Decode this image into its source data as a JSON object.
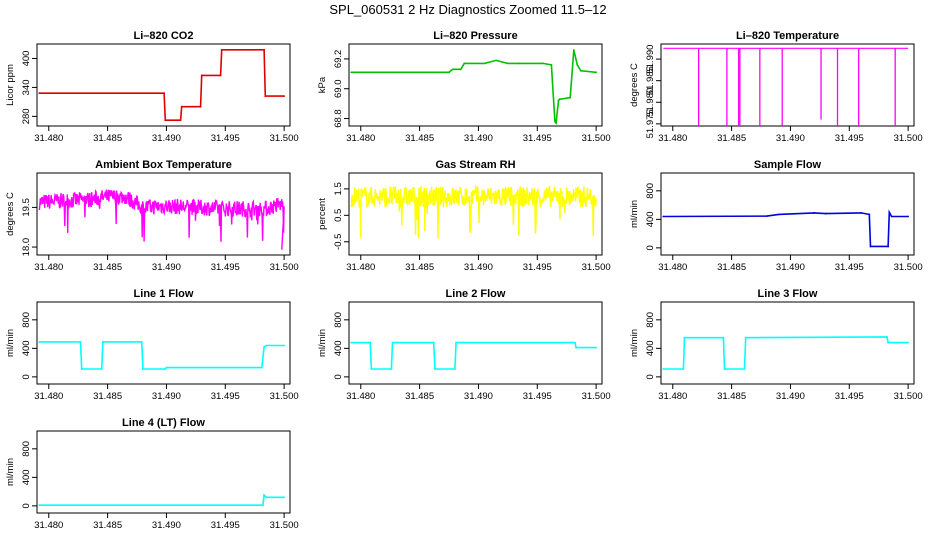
{
  "figure_title": "SPL_060531  2 Hz Diagnostics Zoomed 11.5–12",
  "chart_data": [
    {
      "type": "line",
      "title": "Li–820 CO2",
      "ylabel": "Licor ppm",
      "color": "#e00000",
      "xlim": [
        31.479,
        31.5005
      ],
      "ylim": [
        260,
        430
      ],
      "xticks": [
        "31.480",
        "31.485",
        "31.490",
        "31.495",
        "31.500"
      ],
      "yticks": [
        "280",
        "340",
        "400"
      ],
      "series": [
        {
          "x": [
            31.4792,
            31.4898,
            31.4899,
            31.4912,
            31.4913,
            31.4929,
            31.493,
            31.4946,
            31.4947,
            31.4983,
            31.4984,
            31.5
          ],
          "y": [
            328,
            328,
            272,
            272,
            300,
            300,
            365,
            365,
            418,
            418,
            322,
            322
          ]
        }
      ]
    },
    {
      "type": "line",
      "title": "Li–820 Pressure",
      "ylabel": "kPa",
      "color": "#00c000",
      "xlim": [
        31.479,
        31.5005
      ],
      "ylim": [
        68.75,
        69.3
      ],
      "xticks": [
        "31.480",
        "31.485",
        "31.490",
        "31.495",
        "31.500"
      ],
      "yticks": [
        "68.8",
        "69.0",
        "69.2"
      ],
      "series": [
        {
          "x": [
            31.4792,
            31.4865,
            31.4875,
            31.4878,
            31.4885,
            31.4888,
            31.4905,
            31.4915,
            31.4925,
            31.4935,
            31.4955,
            31.4962,
            31.4965,
            31.4966,
            31.4968,
            31.4969,
            31.4978,
            31.4981,
            31.4984,
            31.4987,
            31.5
          ],
          "y": [
            69.11,
            69.11,
            69.11,
            69.13,
            69.13,
            69.17,
            69.17,
            69.19,
            69.17,
            69.17,
            69.17,
            69.16,
            68.78,
            68.77,
            68.92,
            68.93,
            68.94,
            69.26,
            69.16,
            69.12,
            69.11
          ]
        }
      ]
    },
    {
      "type": "line",
      "title": "Li–820 Temperature",
      "ylabel": "degrees C",
      "color": "#ff00ff",
      "xlim": [
        31.479,
        31.5005
      ],
      "ylim": [
        51.9745,
        51.9935
      ],
      "xticks": [
        "31.480",
        "31.485",
        "31.490",
        "31.495",
        "31.500"
      ],
      "yticks": [
        "51.975",
        "51.980",
        "51.985",
        "51.990"
      ],
      "baseline": 51.9925,
      "spikes": {
        "x": [
          31.4822,
          31.4846,
          31.4856,
          31.4857,
          31.4874,
          31.4893,
          31.4926,
          31.494,
          31.4958,
          31.4989
        ],
        "y": [
          51.9745,
          51.9745,
          51.9745,
          51.9745,
          51.9745,
          51.9745,
          51.976,
          51.9745,
          51.9745,
          51.9745
        ]
      }
    },
    {
      "type": "line",
      "title": "Ambient Box Temperature",
      "ylabel": "degrees C",
      "color": "#ff00ff",
      "xlim": [
        31.479,
        31.5005
      ],
      "ylim": [
        17.7,
        20.8
      ],
      "xticks": [
        "31.480",
        "31.485",
        "31.490",
        "31.495",
        "31.500"
      ],
      "yticks": [
        "18.0",
        "19.5"
      ],
      "series": [
        {
          "x": [
            31.4792,
            31.4835,
            31.485,
            31.4865,
            31.488,
            31.49,
            31.495,
            31.4985,
            31.4995,
            31.5
          ],
          "y": [
            19.7,
            19.8,
            19.9,
            19.9,
            19.5,
            19.55,
            19.45,
            19.45,
            19.6,
            19.6
          ]
        }
      ]
    },
    {
      "type": "line",
      "title": "Gas Stream RH",
      "ylabel": "percent",
      "color": "#ffff00",
      "xlim": [
        31.479,
        31.5005
      ],
      "ylim": [
        -1.0,
        2.1
      ],
      "xticks": [
        "31.480",
        "31.485",
        "31.490",
        "31.495",
        "31.500"
      ],
      "yticks": [
        "-0.5",
        "0.5",
        "1.5"
      ],
      "series": [
        {
          "x": [
            31.4792,
            31.5
          ],
          "y": [
            1.2,
            1.2
          ]
        }
      ]
    },
    {
      "type": "line",
      "title": "Sample Flow",
      "ylabel": "ml/min",
      "color": "#0000e0",
      "xlim": [
        31.479,
        31.5005
      ],
      "ylim": [
        -100,
        1050
      ],
      "xticks": [
        "31.480",
        "31.485",
        "31.490",
        "31.495",
        "31.500"
      ],
      "yticks": [
        "0",
        "400",
        "800"
      ],
      "series": [
        {
          "x": [
            31.4792,
            31.488,
            31.489,
            31.492,
            31.493,
            31.496,
            31.4967,
            31.4968,
            31.4983,
            31.4984,
            31.4986,
            31.5
          ],
          "y": [
            440,
            445,
            470,
            490,
            480,
            490,
            470,
            20,
            20,
            500,
            440,
            440
          ]
        }
      ]
    },
    {
      "type": "line",
      "title": "Line 1 Flow",
      "ylabel": "ml/min",
      "color": "#00ffff",
      "xlim": [
        31.479,
        31.5005
      ],
      "ylim": [
        -100,
        1050
      ],
      "xticks": [
        "31.480",
        "31.485",
        "31.490",
        "31.495",
        "31.500"
      ],
      "yticks": [
        "0",
        "400",
        "800"
      ],
      "series": [
        {
          "x": [
            31.4792,
            31.4827,
            31.4828,
            31.4845,
            31.4846,
            31.4879,
            31.488,
            31.4899,
            31.49,
            31.4981,
            31.4983,
            31.4985,
            31.5
          ],
          "y": [
            490,
            490,
            110,
            110,
            490,
            490,
            110,
            110,
            130,
            130,
            420,
            440,
            440
          ]
        }
      ]
    },
    {
      "type": "line",
      "title": "Line 2 Flow",
      "ylabel": "ml/min",
      "color": "#00ffff",
      "xlim": [
        31.479,
        31.5005
      ],
      "ylim": [
        -100,
        1050
      ],
      "xticks": [
        "31.480",
        "31.485",
        "31.490",
        "31.495",
        "31.500"
      ],
      "yticks": [
        "0",
        "400",
        "800"
      ],
      "series": [
        {
          "x": [
            31.4792,
            31.4808,
            31.4809,
            31.4826,
            31.4827,
            31.4862,
            31.4863,
            31.488,
            31.4881,
            31.4982,
            31.4983,
            31.5
          ],
          "y": [
            480,
            480,
            110,
            110,
            480,
            480,
            110,
            110,
            480,
            480,
            410,
            410
          ]
        }
      ]
    },
    {
      "type": "line",
      "title": "Line 3 Flow",
      "ylabel": "ml/min",
      "color": "#00ffff",
      "xlim": [
        31.479,
        31.5005
      ],
      "ylim": [
        -100,
        1050
      ],
      "xticks": [
        "31.480",
        "31.485",
        "31.490",
        "31.495",
        "31.500"
      ],
      "yticks": [
        "0",
        "400",
        "800"
      ],
      "series": [
        {
          "x": [
            31.4792,
            31.4809,
            31.481,
            31.4843,
            31.4844,
            31.4861,
            31.4862,
            31.4982,
            31.4983,
            31.5
          ],
          "y": [
            110,
            110,
            550,
            550,
            110,
            110,
            550,
            560,
            480,
            480
          ]
        }
      ]
    },
    {
      "type": "line",
      "title": "Line 4 (LT) Flow",
      "ylabel": "ml/min",
      "color": "#00ffff",
      "xlim": [
        31.479,
        31.5005
      ],
      "ylim": [
        -100,
        1050
      ],
      "xticks": [
        "31.480",
        "31.485",
        "31.490",
        "31.495",
        "31.500"
      ],
      "yticks": [
        "0",
        "400",
        "800"
      ],
      "series": [
        {
          "x": [
            31.4792,
            31.4982,
            31.4983,
            31.4985,
            31.5
          ],
          "y": [
            10,
            10,
            150,
            120,
            120
          ]
        }
      ]
    }
  ]
}
